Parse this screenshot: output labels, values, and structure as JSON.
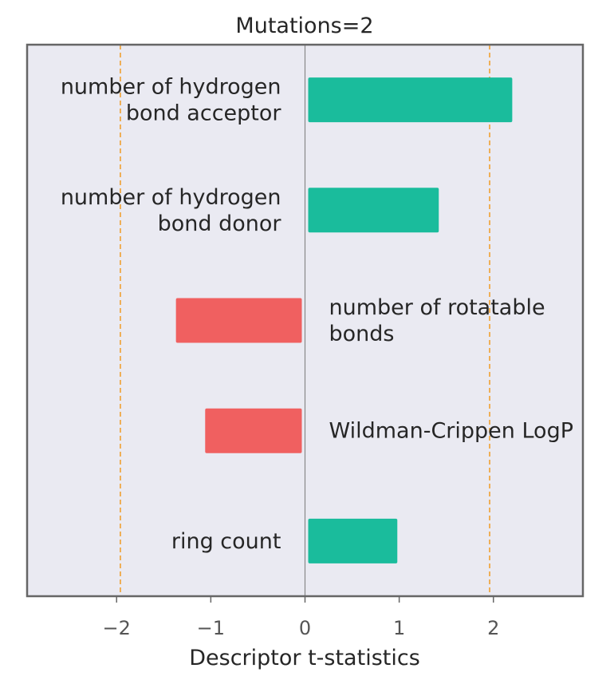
{
  "chart_data": {
    "type": "bar",
    "orientation": "horizontal",
    "title": "Mutations=2",
    "xlabel": "Descriptor t-statistics",
    "ylabel": "",
    "xlim": [
      -2.95,
      2.95
    ],
    "xticks": [
      -2,
      -1,
      0,
      1,
      2
    ],
    "xtick_labels": [
      "−2",
      "−1",
      "0",
      "1",
      "2"
    ],
    "reference_lines": [
      -1.96,
      1.96
    ],
    "categories": [
      {
        "label_lines": [
          "number of hydrogen",
          "bond acceptor"
        ],
        "value": 2.2
      },
      {
        "label_lines": [
          "number of hydrogen",
          "bond donor"
        ],
        "value": 1.42
      },
      {
        "label_lines": [
          "number of rotatable",
          "bonds"
        ],
        "value": -1.37
      },
      {
        "label_lines": [
          "Wildman-Crippen LogP"
        ],
        "value": -1.06
      },
      {
        "label_lines": [
          "ring count"
        ],
        "value": 0.98
      }
    ],
    "colors": {
      "positive": "#1abc9c",
      "negative": "#f06060",
      "plot_background": "#eaeaf2",
      "reference_line": "#f0a030",
      "zero_line": "#888888",
      "frame": "#666666"
    },
    "grid": false,
    "legend": "none"
  }
}
